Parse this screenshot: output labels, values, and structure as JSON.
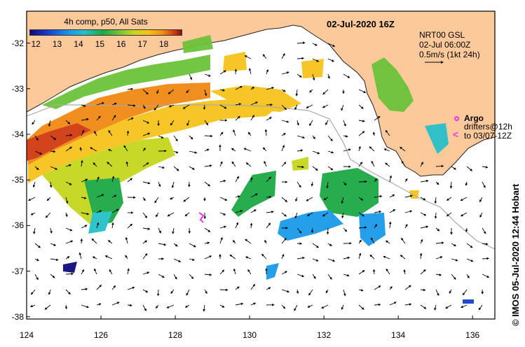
{
  "header": {
    "date_title": "02-Jul-2020 16Z",
    "credit": "© IMOS 05-Jul-2020 12:44 Hobart"
  },
  "colorbar": {
    "title": "4h comp, p50, All Sats",
    "ticks": [
      "12",
      "13",
      "14",
      "15",
      "16",
      "17",
      "18"
    ],
    "range": [
      11.7,
      18.8
    ]
  },
  "legend": {
    "product": "NRT00 GSL",
    "time": "02-Jul 06:00Z",
    "scale": "0.5m/s (1kt 24h)",
    "argo_label": "Argo",
    "drifter_line1": "drifters@12h",
    "drifter_line2": "to 03/07-12Z"
  },
  "axes": {
    "y_ticks": [
      "-32",
      "-33",
      "-34",
      "-35",
      "-36",
      "-37",
      "-38"
    ],
    "x_ticks": [
      "124",
      "126",
      "128",
      "130",
      "132",
      "134",
      "136"
    ],
    "lon_range": [
      124,
      136.6
    ],
    "lat_range": [
      -38.05,
      -31.3
    ]
  },
  "colors": {
    "land": "#fcc99a",
    "ocean": "#ffffff",
    "coast": "#222222",
    "shelf_contour": "#aaaaaa",
    "argo_marker": "#e838e0"
  }
}
